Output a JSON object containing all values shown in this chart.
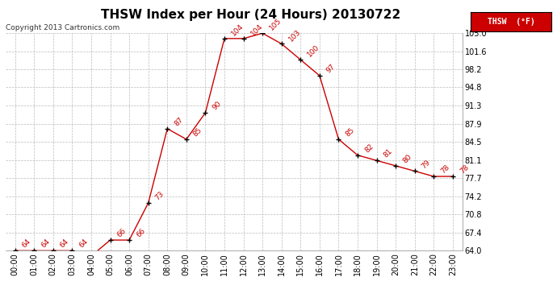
{
  "title": "THSW Index per Hour (24 Hours) 20130722",
  "copyright": "Copyright 2013 Cartronics.com",
  "legend_label": "THSW  (°F)",
  "hours": [
    "00:00",
    "01:00",
    "02:00",
    "03:00",
    "04:00",
    "05:00",
    "06:00",
    "07:00",
    "08:00",
    "09:00",
    "10:00",
    "11:00",
    "12:00",
    "13:00",
    "14:00",
    "15:00",
    "16:00",
    "17:00",
    "18:00",
    "19:00",
    "20:00",
    "21:00",
    "22:00",
    "23:00"
  ],
  "values": [
    64,
    64,
    64,
    64,
    63,
    66,
    66,
    73,
    87,
    85,
    90,
    104,
    104,
    105,
    103,
    100,
    97,
    85,
    82,
    81,
    80,
    79,
    78,
    78
  ],
  "line_color": "#cc0000",
  "marker_color": "#000000",
  "background_color": "#ffffff",
  "grid_color": "#bbbbbb",
  "ylim_min": 64.0,
  "ylim_max": 105.0,
  "yticks": [
    64.0,
    67.4,
    70.8,
    74.2,
    77.7,
    81.1,
    84.5,
    87.9,
    91.3,
    94.8,
    98.2,
    101.6,
    105.0
  ],
  "title_fontsize": 11,
  "label_fontsize": 7,
  "annotation_fontsize": 6.5,
  "legend_bg": "#cc0000",
  "legend_text_color": "#ffffff"
}
